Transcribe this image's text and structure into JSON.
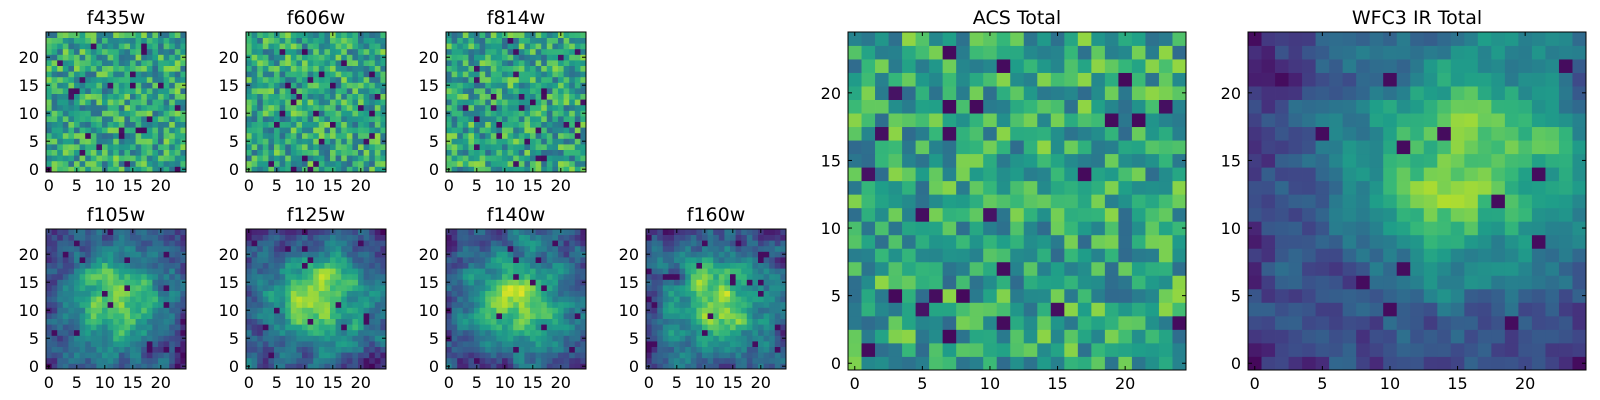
{
  "figure": {
    "colormap": "viridis",
    "colors": {
      "low": "#440154",
      "mid": "#21918c",
      "high": "#fde725",
      "frame": "#000000",
      "background": "#ffffff"
    }
  },
  "chart_data": [
    {
      "type": "heatmap",
      "title": "f435w",
      "grid": [
        25,
        25
      ],
      "seed": 11,
      "pattern": "noise",
      "xticks": [
        "0",
        "5",
        "10",
        "15",
        "20"
      ],
      "yticks": [
        "0",
        "5",
        "10",
        "15",
        "20"
      ],
      "xlim": [
        -0.5,
        24.5
      ],
      "ylim": [
        -0.5,
        24.5
      ],
      "colormap": "viridis",
      "values": null
    },
    {
      "type": "heatmap",
      "title": "f606w",
      "grid": [
        25,
        25
      ],
      "seed": 23,
      "pattern": "noise",
      "xticks": [
        "0",
        "5",
        "10",
        "15",
        "20"
      ],
      "yticks": [
        "0",
        "5",
        "10",
        "15",
        "20"
      ],
      "xlim": [
        -0.5,
        24.5
      ],
      "ylim": [
        -0.5,
        24.5
      ],
      "colormap": "viridis",
      "values": null
    },
    {
      "type": "heatmap",
      "title": "f814w",
      "grid": [
        25,
        25
      ],
      "seed": 37,
      "pattern": "noise",
      "xticks": [
        "0",
        "5",
        "10",
        "15",
        "20"
      ],
      "yticks": [
        "0",
        "5",
        "10",
        "15",
        "20"
      ],
      "xlim": [
        -0.5,
        24.5
      ],
      "ylim": [
        -0.5,
        24.5
      ],
      "colormap": "viridis",
      "values": null
    },
    {
      "type": "heatmap",
      "title": "f105w",
      "grid": [
        25,
        25
      ],
      "seed": 41,
      "pattern": "blob",
      "xticks": [
        "0",
        "5",
        "10",
        "15",
        "20"
      ],
      "yticks": [
        "0",
        "5",
        "10",
        "15",
        "20"
      ],
      "xlim": [
        -0.5,
        24.5
      ],
      "ylim": [
        -0.5,
        24.5
      ],
      "colormap": "viridis",
      "values": null
    },
    {
      "type": "heatmap",
      "title": "f125w",
      "grid": [
        25,
        25
      ],
      "seed": 53,
      "pattern": "blob",
      "xticks": [
        "0",
        "5",
        "10",
        "15",
        "20"
      ],
      "yticks": [
        "0",
        "5",
        "10",
        "15",
        "20"
      ],
      "xlim": [
        -0.5,
        24.5
      ],
      "ylim": [
        -0.5,
        24.5
      ],
      "colormap": "viridis",
      "values": null
    },
    {
      "type": "heatmap",
      "title": "f140w",
      "grid": [
        25,
        25
      ],
      "seed": 67,
      "pattern": "blob",
      "xticks": [
        "0",
        "5",
        "10",
        "15",
        "20"
      ],
      "yticks": [
        "0",
        "5",
        "10",
        "15",
        "20"
      ],
      "xlim": [
        -0.5,
        24.5
      ],
      "ylim": [
        -0.5,
        24.5
      ],
      "colormap": "viridis",
      "values": null
    },
    {
      "type": "heatmap",
      "title": "f160w",
      "grid": [
        25,
        25
      ],
      "seed": 79,
      "pattern": "blob",
      "xticks": [
        "0",
        "5",
        "10",
        "15",
        "20"
      ],
      "yticks": [
        "0",
        "5",
        "10",
        "15",
        "20"
      ],
      "xlim": [
        -0.5,
        24.5
      ],
      "ylim": [
        -0.5,
        24.5
      ],
      "colormap": "viridis",
      "values": null
    },
    {
      "type": "heatmap",
      "title": "ACS Total",
      "grid": [
        25,
        25
      ],
      "seed": 97,
      "pattern": "noise",
      "xticks": [
        "0",
        "5",
        "10",
        "15",
        "20"
      ],
      "yticks": [
        "0",
        "5",
        "10",
        "15",
        "20"
      ],
      "xlim": [
        -0.5,
        24.5
      ],
      "ylim": [
        -0.5,
        24.5
      ],
      "colormap": "viridis",
      "values": null
    },
    {
      "type": "heatmap",
      "title": "WFC3 IR Total",
      "grid": [
        25,
        25
      ],
      "seed": 113,
      "pattern": "smooth",
      "xticks": [
        "0",
        "5",
        "10",
        "15",
        "20"
      ],
      "yticks": [
        "0",
        "5",
        "10",
        "15",
        "20"
      ],
      "xlim": [
        -0.5,
        24.5
      ],
      "ylim": [
        -0.5,
        24.5
      ],
      "colormap": "viridis",
      "values": null
    }
  ]
}
